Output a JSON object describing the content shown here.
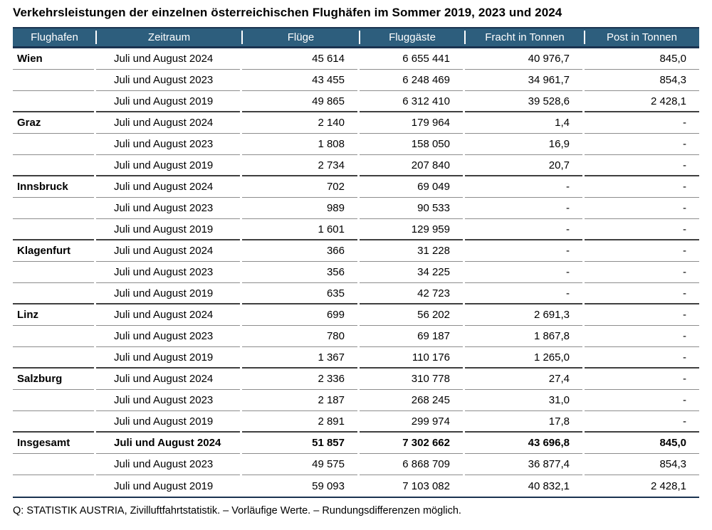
{
  "title": "Verkehrsleistungen der einzelnen österreichischen Flughäfen im Sommer 2019, 2023 und 2024",
  "footnote": "Q: STATISTIK AUSTRIA, Zivilluftfahrtstatistik. – Vorläufige Werte. – Rundungsdifferenzen möglich.",
  "colors": {
    "header_bg": "#2D5E7D",
    "header_text": "#FFFFFF",
    "dark_rule": "#1A3350",
    "row_rule": "#8C8C8C",
    "group_rule": "#3F3F3F"
  },
  "table": {
    "columns": [
      "Flughafen",
      "Zeitraum",
      "Flüge",
      "Fluggäste",
      "Fracht in Tonnen",
      "Post in Tonnen"
    ],
    "rows": [
      {
        "flughafen": "Wien",
        "zeitraum": "Juli und August 2024",
        "fluege": "45 614",
        "fluggaeste": "6 655 441",
        "fracht": "40 976,7",
        "post": "845,0"
      },
      {
        "flughafen": "",
        "zeitraum": "Juli und August 2023",
        "fluege": "43 455",
        "fluggaeste": "6 248 469",
        "fracht": "34 961,7",
        "post": "854,3"
      },
      {
        "flughafen": "",
        "zeitraum": "Juli und August 2019",
        "fluege": "49 865",
        "fluggaeste": "6 312 410",
        "fracht": "39 528,6",
        "post": "2 428,1"
      },
      {
        "flughafen": "Graz",
        "zeitraum": "Juli und August 2024",
        "fluege": "2 140",
        "fluggaeste": "179 964",
        "fracht": "1,4",
        "post": "-"
      },
      {
        "flughafen": "",
        "zeitraum": "Juli und August 2023",
        "fluege": "1 808",
        "fluggaeste": "158 050",
        "fracht": "16,9",
        "post": "-"
      },
      {
        "flughafen": "",
        "zeitraum": "Juli und August 2019",
        "fluege": "2 734",
        "fluggaeste": "207 840",
        "fracht": "20,7",
        "post": "-"
      },
      {
        "flughafen": "Innsbruck",
        "zeitraum": "Juli und August 2024",
        "fluege": "702",
        "fluggaeste": "69 049",
        "fracht": "-",
        "post": "-"
      },
      {
        "flughafen": "",
        "zeitraum": "Juli und August 2023",
        "fluege": "989",
        "fluggaeste": "90 533",
        "fracht": "-",
        "post": "-"
      },
      {
        "flughafen": "",
        "zeitraum": "Juli und August 2019",
        "fluege": "1 601",
        "fluggaeste": "129 959",
        "fracht": "-",
        "post": "-"
      },
      {
        "flughafen": "Klagenfurt",
        "zeitraum": "Juli und August 2024",
        "fluege": "366",
        "fluggaeste": "31 228",
        "fracht": "-",
        "post": "-"
      },
      {
        "flughafen": "",
        "zeitraum": "Juli und August 2023",
        "fluege": "356",
        "fluggaeste": "34 225",
        "fracht": "-",
        "post": "-"
      },
      {
        "flughafen": "",
        "zeitraum": "Juli und August 2019",
        "fluege": "635",
        "fluggaeste": "42 723",
        "fracht": "-",
        "post": "-"
      },
      {
        "flughafen": "Linz",
        "zeitraum": "Juli und August 2024",
        "fluege": "699",
        "fluggaeste": "56 202",
        "fracht": "2 691,3",
        "post": "-"
      },
      {
        "flughafen": "",
        "zeitraum": "Juli und August 2023",
        "fluege": "780",
        "fluggaeste": "69 187",
        "fracht": "1 867,8",
        "post": "-"
      },
      {
        "flughafen": "",
        "zeitraum": "Juli und August 2019",
        "fluege": "1 367",
        "fluggaeste": "110 176",
        "fracht": "1 265,0",
        "post": "-"
      },
      {
        "flughafen": "Salzburg",
        "zeitraum": "Juli und August 2024",
        "fluege": "2 336",
        "fluggaeste": "310 778",
        "fracht": "27,4",
        "post": "-"
      },
      {
        "flughafen": "",
        "zeitraum": "Juli und August 2023",
        "fluege": "2 187",
        "fluggaeste": "268 245",
        "fracht": "31,0",
        "post": "-"
      },
      {
        "flughafen": "",
        "zeitraum": "Juli und August 2019",
        "fluege": "2 891",
        "fluggaeste": "299 974",
        "fracht": "17,8",
        "post": "-"
      },
      {
        "flughafen": "Insgesamt",
        "zeitraum": "Juli und August 2024",
        "fluege": "51 857",
        "fluggaeste": "7 302 662",
        "fracht": "43 696,8",
        "post": "845,0"
      },
      {
        "flughafen": "",
        "zeitraum": "Juli und August 2023",
        "fluege": "49 575",
        "fluggaeste": "6 868 709",
        "fracht": "36 877,4",
        "post": "854,3"
      },
      {
        "flughafen": "",
        "zeitraum": "Juli und August 2019",
        "fluege": "59 093",
        "fluggaeste": "7 103 082",
        "fracht": "40 832,1",
        "post": "2 428,1"
      }
    ]
  },
  "chart_data": {
    "type": "table",
    "title": "Verkehrsleistungen der einzelnen österreichischen Flughäfen im Sommer 2019, 2023 und 2024",
    "columns": [
      "Flughafen",
      "Zeitraum",
      "Flüge",
      "Fluggäste",
      "Fracht in Tonnen",
      "Post in Tonnen"
    ],
    "rows": [
      [
        "Wien",
        "Juli und August 2024",
        45614,
        6655441,
        40976.7,
        845.0
      ],
      [
        "Wien",
        "Juli und August 2023",
        43455,
        6248469,
        34961.7,
        854.3
      ],
      [
        "Wien",
        "Juli und August 2019",
        49865,
        6312410,
        39528.6,
        2428.1
      ],
      [
        "Graz",
        "Juli und August 2024",
        2140,
        179964,
        1.4,
        null
      ],
      [
        "Graz",
        "Juli und August 2023",
        1808,
        158050,
        16.9,
        null
      ],
      [
        "Graz",
        "Juli und August 2019",
        2734,
        207840,
        20.7,
        null
      ],
      [
        "Innsbruck",
        "Juli und August 2024",
        702,
        69049,
        null,
        null
      ],
      [
        "Innsbruck",
        "Juli und August 2023",
        989,
        90533,
        null,
        null
      ],
      [
        "Innsbruck",
        "Juli und August 2019",
        1601,
        129959,
        null,
        null
      ],
      [
        "Klagenfurt",
        "Juli und August 2024",
        366,
        31228,
        null,
        null
      ],
      [
        "Klagenfurt",
        "Juli und August 2023",
        356,
        34225,
        null,
        null
      ],
      [
        "Klagenfurt",
        "Juli und August 2019",
        635,
        42723,
        null,
        null
      ],
      [
        "Linz",
        "Juli und August 2024",
        699,
        56202,
        2691.3,
        null
      ],
      [
        "Linz",
        "Juli und August 2023",
        780,
        69187,
        1867.8,
        null
      ],
      [
        "Linz",
        "Juli und August 2019",
        1367,
        110176,
        1265.0,
        null
      ],
      [
        "Salzburg",
        "Juli und August 2024",
        2336,
        310778,
        27.4,
        null
      ],
      [
        "Salzburg",
        "Juli und August 2023",
        2187,
        268245,
        31.0,
        null
      ],
      [
        "Salzburg",
        "Juli und August 2019",
        2891,
        299974,
        17.8,
        null
      ],
      [
        "Insgesamt",
        "Juli und August 2024",
        51857,
        7302662,
        43696.8,
        845.0
      ],
      [
        "Insgesamt",
        "Juli und August 2023",
        49575,
        6868709,
        36877.4,
        854.3
      ],
      [
        "Insgesamt",
        "Juli und August 2019",
        59093,
        7103082,
        40832.1,
        2428.1
      ]
    ],
    "source_note": "Q: STATISTIK AUSTRIA, Zivilluftfahrtstatistik. – Vorläufige Werte. – Rundungsdifferenzen möglich."
  }
}
